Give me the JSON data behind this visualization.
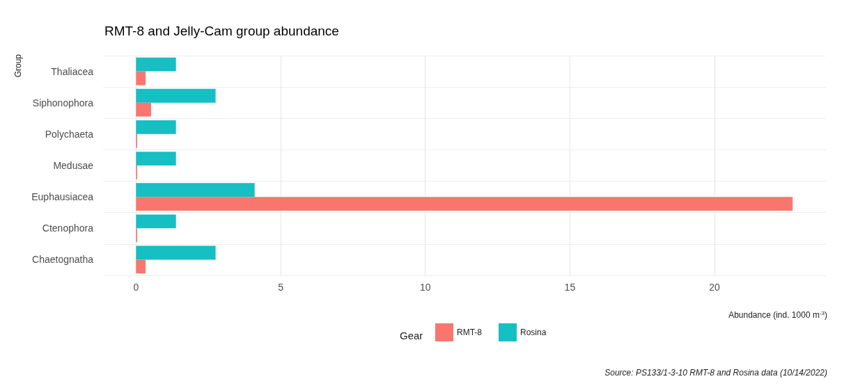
{
  "chart_data": {
    "type": "bar",
    "orientation": "horizontal",
    "title": "RMT-8 and Jelly-Cam group abundance",
    "xlabel": "Abundance (ind. 1000 m$^{-3}$)",
    "ylabel": "Group",
    "legend_title": "Gear",
    "categories": [
      "Thaliacea",
      "Siphonophora",
      "Polychaeta",
      "Medusae",
      "Euphausiacea",
      "Ctenophora",
      "Chaetognatha"
    ],
    "series": [
      {
        "name": "RMT-8",
        "color": "#f8766d",
        "values": [
          0.33,
          0.52,
          0.04,
          0.04,
          22.7,
          0.04,
          0.33
        ]
      },
      {
        "name": "Rosina",
        "color": "#15bfc4",
        "values": [
          1.38,
          2.75,
          1.38,
          1.38,
          4.1,
          1.38,
          2.75
        ]
      }
    ],
    "xlim": [
      -1.14,
      23.85
    ],
    "xticks": [
      0,
      5,
      10,
      15,
      20
    ],
    "grid": true,
    "legend": "bottom",
    "annotations": [
      "Source: PS133/1-3-10 RMT-8 and Rosina data (10/14/2022)"
    ]
  }
}
